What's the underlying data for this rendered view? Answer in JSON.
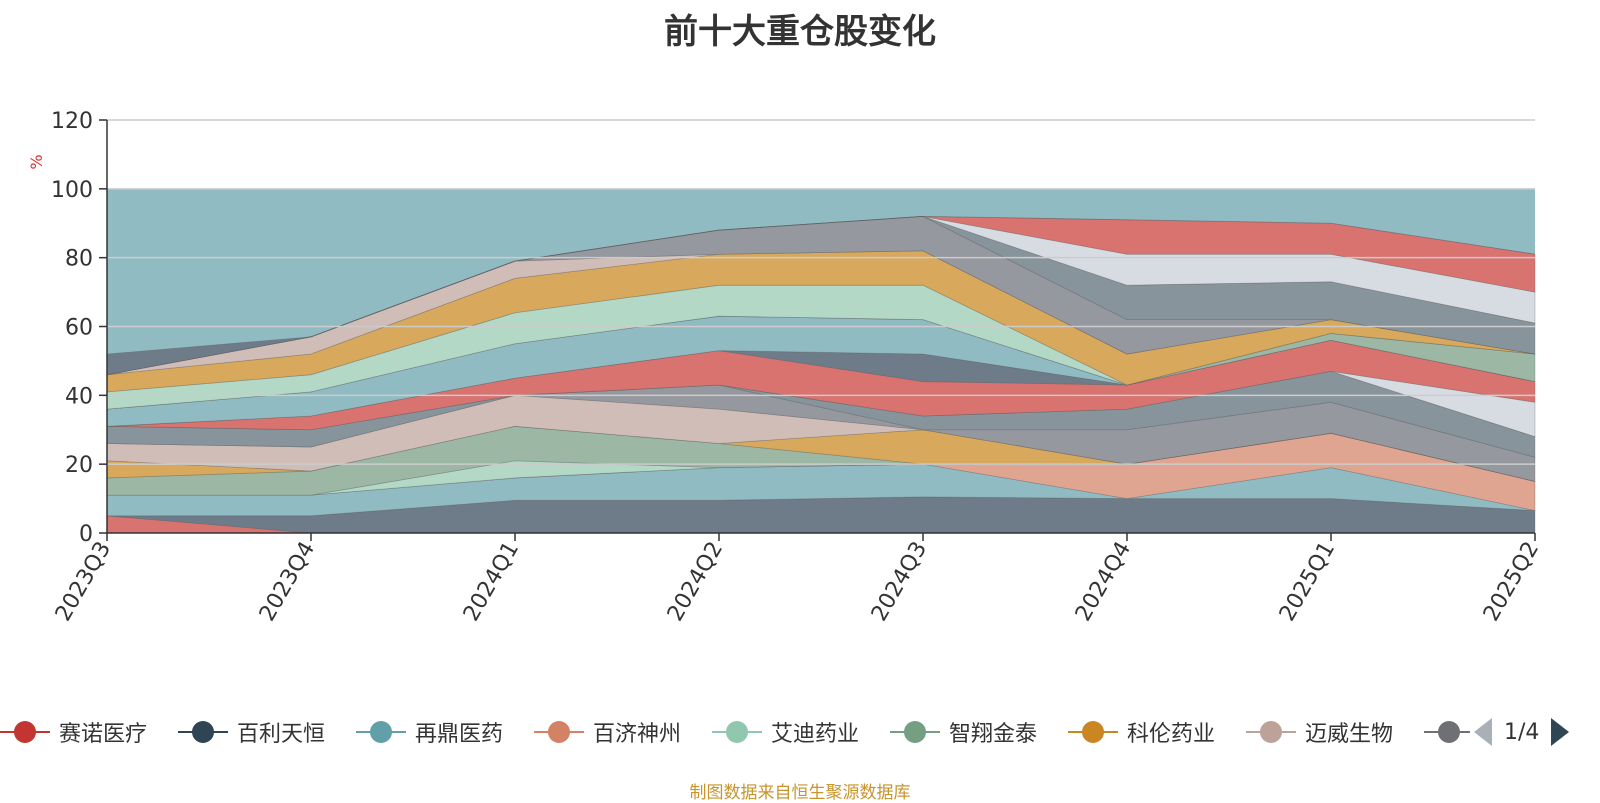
{
  "chart_data": {
    "type": "area",
    "title": "前十大重仓股变化",
    "ylabel": "%",
    "ylim": [
      0,
      120
    ],
    "yticks": [
      0,
      20,
      40,
      60,
      80,
      100,
      120
    ],
    "categories": [
      "2023Q3",
      "2023Q4",
      "2024Q1",
      "2024Q2",
      "2024Q3",
      "2024Q4",
      "2025Q1",
      "2025Q2"
    ],
    "grid": true,
    "legend_position": "bottom",
    "background_fill": {
      "value": 100,
      "color": "#91bbc2"
    },
    "stacked_bands": [
      {
        "upper": [
          5,
          0,
          0,
          0,
          0,
          0,
          0,
          0
        ],
        "color": "#d97370"
      },
      {
        "upper": [
          5,
          5,
          9.5,
          9.5,
          10.5,
          10,
          10,
          6.5
        ],
        "color": "#6e7c89"
      },
      {
        "upper": [
          11,
          11,
          16,
          19,
          20,
          10,
          19,
          6.5
        ],
        "color": "#91bbc2"
      },
      {
        "upper": [
          11,
          11,
          16,
          19,
          20,
          20,
          29,
          15
        ],
        "color": "#dfa590"
      },
      {
        "upper": [
          11,
          11,
          21,
          19,
          20,
          20,
          29,
          15
        ],
        "color": "#b3d8c6"
      },
      {
        "upper": [
          16,
          18,
          31,
          26,
          20,
          20,
          29,
          15
        ],
        "color": "#9cb8a4"
      },
      {
        "upper": [
          21,
          18,
          31,
          26,
          30,
          20,
          29,
          15
        ],
        "color": "#d8a85c"
      },
      {
        "upper": [
          26,
          25,
          40,
          36,
          30,
          20,
          29,
          15
        ],
        "color": "#d1bdb8"
      },
      {
        "upper": [
          26,
          25,
          40,
          43,
          30,
          30,
          38,
          22
        ],
        "color": "#95989e"
      },
      {
        "upper": [
          31,
          30,
          40,
          43,
          34,
          36,
          47,
          28
        ],
        "color": "#87949c"
      },
      {
        "upper": [
          31,
          30,
          40,
          43,
          34,
          36,
          47,
          38
        ],
        "color": "#d7dbe2"
      },
      {
        "upper": [
          31,
          34,
          45,
          53,
          44,
          43,
          56,
          44
        ],
        "color": "#d97370"
      },
      {
        "upper": [
          31,
          34,
          45,
          53,
          52,
          43,
          56,
          44
        ],
        "color": "#6e7c89"
      },
      {
        "upper": [
          36,
          41,
          55,
          63,
          62,
          43,
          56,
          44
        ],
        "color": "#91bbc2"
      },
      {
        "upper": [
          36,
          41,
          55,
          63,
          62,
          43,
          58,
          52
        ],
        "color": "#9cb8a4"
      },
      {
        "upper": [
          41,
          46,
          64,
          72,
          72,
          43,
          58,
          52
        ],
        "color": "#b3d8c6"
      },
      {
        "upper": [
          46,
          52,
          74,
          81,
          82,
          52,
          62,
          52
        ],
        "color": "#d8a85c"
      },
      {
        "upper": [
          46,
          57,
          79,
          81,
          82,
          52,
          62,
          52
        ],
        "color": "#d1bdb8"
      },
      {
        "upper": [
          46,
          57,
          79,
          88,
          92,
          62,
          62,
          52
        ],
        "color": "#95989e"
      },
      {
        "upper": [
          46,
          57,
          79,
          88,
          92,
          72,
          73,
          61
        ],
        "color": "#87949c"
      },
      {
        "upper": [
          46,
          57,
          79,
          88,
          92,
          81,
          81,
          70
        ],
        "color": "#d7dbe2"
      },
      {
        "upper": [
          46,
          57,
          79,
          88,
          92,
          91,
          90,
          81
        ],
        "color": "#d97370"
      },
      {
        "upper": [
          52,
          57,
          79,
          88,
          92,
          91,
          90,
          81
        ],
        "color": "#6e7c89"
      }
    ],
    "legend": [
      {
        "label": "赛诺医疗",
        "color": "#c23531"
      },
      {
        "label": "百利天恒",
        "color": "#2f4554"
      },
      {
        "label": "再鼎医药",
        "color": "#61a0a8"
      },
      {
        "label": "百济神州",
        "color": "#d48265"
      },
      {
        "label": "艾迪药业",
        "color": "#91c7ae"
      },
      {
        "label": "智翔金泰",
        "color": "#749f83"
      },
      {
        "label": "科伦药业",
        "color": "#ca8622"
      },
      {
        "label": "迈威生物",
        "color": "#bda29a"
      },
      {
        "label": "",
        "color": "#6e7074"
      }
    ]
  },
  "legend_pager": {
    "page_text": "1/4"
  },
  "footer": {
    "source_text": "制图数据来自恒生聚源数据库",
    "color": "#c8942c"
  },
  "colors": {
    "axis": "#333333",
    "grid": "#cccccc"
  }
}
